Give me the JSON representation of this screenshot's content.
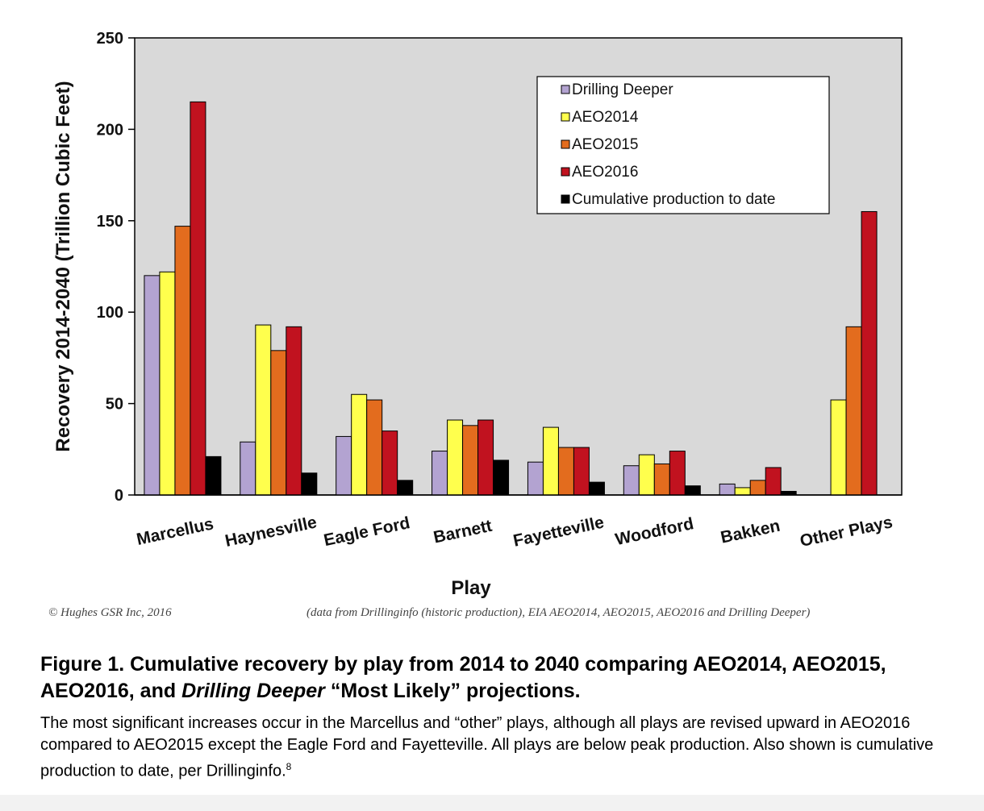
{
  "chart_data": {
    "type": "bar",
    "ylabel": "Recovery 2014-2040 (Trillion Cubic Feet)",
    "xlabel": "Play",
    "ylim": [
      0,
      250
    ],
    "yticks": [
      "0",
      "50",
      "100",
      "150",
      "200",
      "250"
    ],
    "grid": false,
    "legend_position": "top-right",
    "categories": [
      "Marcellus",
      "Haynesville",
      "Eagle Ford",
      "Barnett",
      "Fayetteville",
      "Woodford",
      "Bakken",
      "Other Plays"
    ],
    "series": [
      {
        "name": "Drilling Deeper",
        "color": "#b3a3d1",
        "values": [
          120,
          29,
          32,
          24,
          18,
          16,
          6,
          null
        ]
      },
      {
        "name": "AEO2014",
        "color": "#ffff4d",
        "values": [
          122,
          93,
          55,
          41,
          37,
          22,
          4,
          52
        ]
      },
      {
        "name": "AEO2015",
        "color": "#e36c1e",
        "values": [
          147,
          79,
          52,
          38,
          26,
          17,
          8,
          92
        ]
      },
      {
        "name": "AEO2016",
        "color": "#c1121f",
        "values": [
          215,
          92,
          35,
          41,
          26,
          24,
          15,
          155
        ]
      },
      {
        "name": "Cumulative production to date",
        "color": "#000000",
        "values": [
          21,
          12,
          8,
          19,
          7,
          5,
          2,
          null
        ]
      }
    ],
    "plot_background": "#d9d9d9"
  },
  "credits": {
    "left": "© Hughes GSR Inc, 2016",
    "right": "(data from Drillinginfo (historic production), EIA AEO2014, AEO2015, AEO2016 and Drilling Deeper)"
  },
  "caption": {
    "title_part1": "Figure 1. Cumulative recovery by play from 2014 to 2040 comparing AEO2014, AEO2015, AEO2016, and ",
    "title_italic": "Drilling Deeper",
    "title_part2": " “Most Likely” projections.",
    "body": "The most significant increases occur in the Marcellus and “other” plays, although all plays are revised upward in AEO2016 compared to AEO2015 except the Eagle Ford and Fayetteville. All plays are below peak production. Also shown is cumulative production to date, per Drillinginfo.",
    "footnote_marker": "8"
  }
}
